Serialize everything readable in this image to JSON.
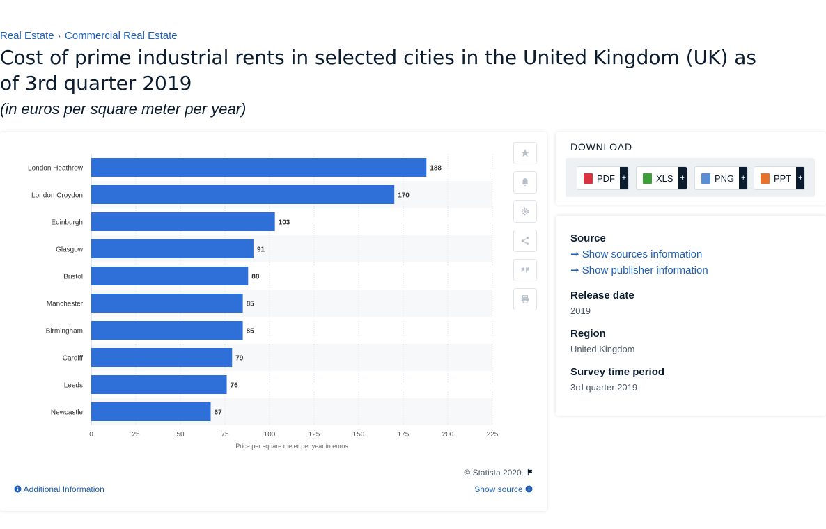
{
  "breadcrumb": {
    "item1": "Real Estate",
    "sep": "›",
    "item2": "Commercial Real Estate"
  },
  "title": "Cost of prime industrial rents in selected cities in the United Kingdom (UK) as of 3rd quarter 2019",
  "subtitle": "(in euros per square meter per year)",
  "chart_data": {
    "type": "bar",
    "orientation": "horizontal",
    "categories": [
      "London Heathrow",
      "London Croydon",
      "Edinburgh",
      "Glasgow",
      "Bristol",
      "Manchester",
      "Birmingham",
      "Cardiff",
      "Leeds",
      "Newcastle"
    ],
    "values": [
      188,
      170,
      103,
      91,
      88,
      85,
      85,
      79,
      76,
      67
    ],
    "xlabel": "Price per square meter per year in euros",
    "ylabel": "",
    "xlim": [
      0,
      225
    ],
    "xticks": [
      0,
      25,
      50,
      75,
      100,
      125,
      150,
      175,
      200,
      225
    ],
    "bar_color": "#2e6fd8",
    "grid": true
  },
  "chart_footer": {
    "copyright": "© Statista 2020",
    "additional_info": "Additional Information",
    "show_source": "Show source"
  },
  "download": {
    "label": "DOWNLOAD",
    "buttons": [
      {
        "label": "PDF",
        "color": "#d9333f"
      },
      {
        "label": "XLS",
        "color": "#3e9e3a"
      },
      {
        "label": "PNG",
        "color": "#5a8fd6"
      },
      {
        "label": "PPT",
        "color": "#e6722b"
      }
    ],
    "plus": "+"
  },
  "info": {
    "source_heading": "Source",
    "show_sources": "Show sources information",
    "show_publisher": "Show publisher information",
    "release_heading": "Release date",
    "release_value": "2019",
    "region_heading": "Region",
    "region_value": "United Kingdom",
    "survey_heading": "Survey time period",
    "survey_value": "3rd quarter 2019"
  },
  "tool_icons": [
    "star-icon",
    "bell-icon",
    "gear-icon",
    "share-icon",
    "quote-icon",
    "print-icon"
  ]
}
